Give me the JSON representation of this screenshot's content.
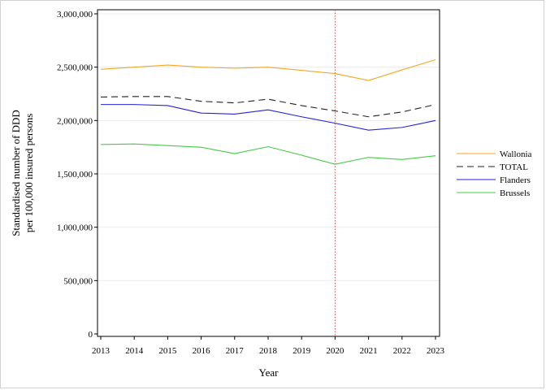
{
  "chart_data": {
    "type": "line",
    "title": "",
    "xlabel": "Year",
    "ylabel_line1": "Standardised number of DDD",
    "ylabel_line2": "per 100,000 insured persons",
    "x": [
      2013,
      2014,
      2015,
      2016,
      2017,
      2018,
      2019,
      2020,
      2021,
      2022,
      2023
    ],
    "x_tick_labels": [
      "2013",
      "2014",
      "2015",
      "2016",
      "2017",
      "2018",
      "2019",
      "2020",
      "2021",
      "2022",
      "2023"
    ],
    "ylim": [
      0,
      3000000
    ],
    "y_ticks": [
      0,
      500000,
      1000000,
      1500000,
      2000000,
      2500000,
      3000000
    ],
    "y_tick_labels": [
      "0",
      "500,000",
      "1,000,000",
      "1,500,000",
      "2,000,000",
      "2,500,000",
      "3,000,000"
    ],
    "grid": "horizontal",
    "reference_line": {
      "x": 2020,
      "style": "dotted",
      "color": "#c0504d"
    },
    "legend_position": "right",
    "series": [
      {
        "name": "Wallonia",
        "color": "#f5a623",
        "dash": "solid",
        "values": [
          2480000,
          2500000,
          2520000,
          2500000,
          2490000,
          2500000,
          2470000,
          2440000,
          2375000,
          2475000,
          2570000
        ]
      },
      {
        "name": "TOTAL",
        "color": "#222222",
        "dash": "dashed",
        "values": [
          2220000,
          2225000,
          2225000,
          2180000,
          2165000,
          2200000,
          2140000,
          2090000,
          2035000,
          2080000,
          2150000
        ]
      },
      {
        "name": "Flanders",
        "color": "#2222dd",
        "dash": "solid",
        "values": [
          2150000,
          2150000,
          2140000,
          2070000,
          2060000,
          2100000,
          2035000,
          1975000,
          1910000,
          1935000,
          2000000
        ]
      },
      {
        "name": "Brussels",
        "color": "#44cc44",
        "dash": "solid",
        "values": [
          1775000,
          1780000,
          1765000,
          1750000,
          1690000,
          1755000,
          1675000,
          1590000,
          1655000,
          1635000,
          1670000
        ]
      }
    ]
  }
}
